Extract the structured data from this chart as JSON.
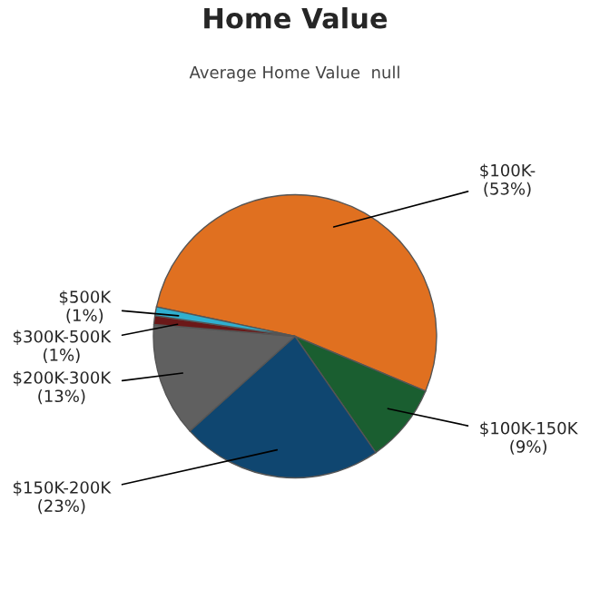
{
  "chart_data": {
    "type": "pie",
    "title": "Home Value",
    "subtitle": "Average Home Value  null",
    "categories": [
      "$100K-",
      "$100K-150K",
      "$150K-200K",
      "$200K-300K",
      "$300K-500K",
      "$500K"
    ],
    "values": [
      53,
      9,
      23,
      13,
      1,
      1
    ],
    "value_labels": [
      "(53%)",
      "(9%)",
      "(23%)",
      "(13%)",
      "(1%)",
      "(1%)"
    ],
    "colors": [
      "#e07020",
      "#1a5e30",
      "#0f4670",
      "#606060",
      "#6b1818",
      "#30b0d0"
    ]
  }
}
